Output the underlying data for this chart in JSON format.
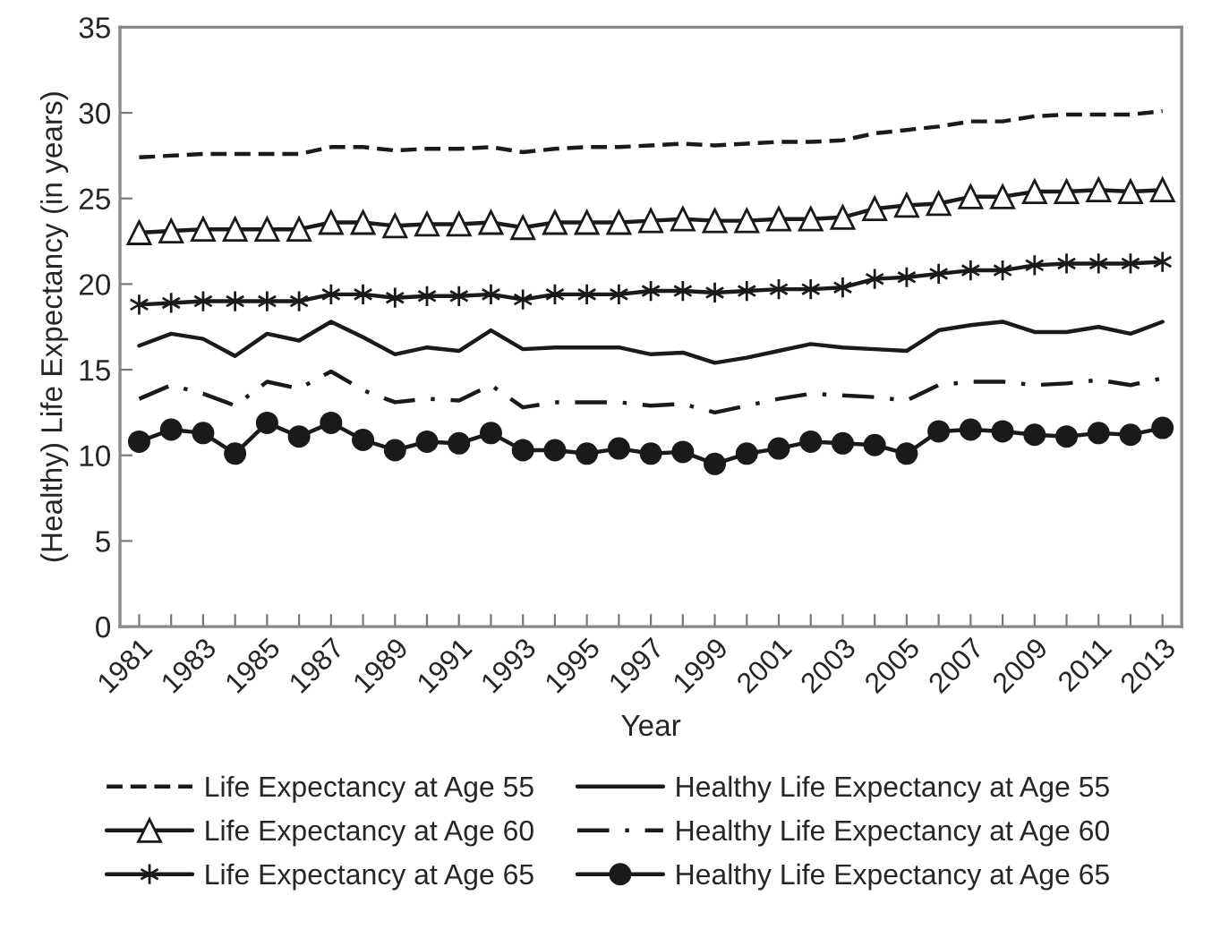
{
  "chart_data": {
    "type": "line",
    "xlabel": "Year",
    "ylabel": "(Healthy) Life Expectancy (in years)",
    "categories": [
      "1981",
      null,
      "1983",
      null,
      "1985",
      null,
      "1987",
      null,
      "1989",
      null,
      "1991",
      null,
      "1993",
      null,
      "1995",
      null,
      "1997",
      null,
      "1999",
      null,
      "2001",
      null,
      "2003",
      null,
      "2005",
      null,
      "2007",
      null,
      "2009",
      null,
      "2011",
      null,
      "2013"
    ],
    "ylim": [
      0,
      35
    ],
    "yticks": [
      0,
      5,
      10,
      15,
      20,
      25,
      30,
      35
    ],
    "grid": false,
    "legend": "bottom",
    "series": [
      {
        "name": "Life Expectancy at Age 55",
        "color": "#1a1a1a",
        "line_style": "dashed",
        "marker": "none",
        "values": [
          27.4,
          27.5,
          27.6,
          27.6,
          27.6,
          27.6,
          28.0,
          28.0,
          27.8,
          27.9,
          27.9,
          28.0,
          27.7,
          27.9,
          28.0,
          28.0,
          28.1,
          28.2,
          28.1,
          28.2,
          28.3,
          28.3,
          28.4,
          28.8,
          29.0,
          29.2,
          29.5,
          29.5,
          29.8,
          29.9,
          29.9,
          29.9,
          30.1
        ]
      },
      {
        "name": "Life Expectancy at Age 60",
        "color": "#1a1a1a",
        "line_style": "solid",
        "marker": "triangle",
        "values": [
          23.0,
          23.1,
          23.2,
          23.2,
          23.2,
          23.2,
          23.6,
          23.6,
          23.4,
          23.5,
          23.5,
          23.6,
          23.3,
          23.6,
          23.6,
          23.6,
          23.7,
          23.8,
          23.7,
          23.7,
          23.8,
          23.8,
          23.9,
          24.4,
          24.6,
          24.7,
          25.1,
          25.1,
          25.4,
          25.4,
          25.5,
          25.4,
          25.5
        ]
      },
      {
        "name": "Life Expectancy at Age 65",
        "color": "#1a1a1a",
        "line_style": "solid",
        "marker": "cross",
        "values": [
          18.8,
          18.9,
          19.0,
          19.0,
          19.0,
          19.0,
          19.4,
          19.4,
          19.2,
          19.3,
          19.3,
          19.4,
          19.1,
          19.4,
          19.4,
          19.4,
          19.6,
          19.6,
          19.5,
          19.6,
          19.7,
          19.7,
          19.8,
          20.3,
          20.4,
          20.6,
          20.8,
          20.8,
          21.1,
          21.2,
          21.2,
          21.2,
          21.3
        ]
      },
      {
        "name": "Healthy Life Expectancy at Age 55",
        "color": "#1a1a1a",
        "line_style": "solid",
        "marker": "none",
        "values": [
          16.4,
          17.1,
          16.8,
          15.8,
          17.1,
          16.7,
          17.8,
          16.9,
          15.9,
          16.3,
          16.1,
          17.3,
          16.2,
          16.3,
          16.3,
          16.3,
          15.9,
          16.0,
          15.4,
          15.7,
          16.1,
          16.5,
          16.3,
          16.2,
          16.1,
          17.3,
          17.6,
          17.8,
          17.2,
          17.2,
          17.5,
          17.1,
          17.8
        ]
      },
      {
        "name": "Healthy Life Expectancy at Age 60",
        "color": "#1a1a1a",
        "line_style": "dashdot",
        "marker": "none",
        "values": [
          13.3,
          14.1,
          13.6,
          12.9,
          14.3,
          13.9,
          14.9,
          13.8,
          13.1,
          13.3,
          13.2,
          14.1,
          12.8,
          13.1,
          13.1,
          13.1,
          12.9,
          13.0,
          12.5,
          12.9,
          13.3,
          13.6,
          13.5,
          13.4,
          13.2,
          14.1,
          14.3,
          14.3,
          14.1,
          14.2,
          14.4,
          14.1,
          14.5
        ]
      },
      {
        "name": "Healthy Life Expectancy at Age 65",
        "color": "#1a1a1a",
        "line_style": "solid",
        "marker": "circle",
        "values": [
          10.8,
          11.5,
          11.3,
          10.1,
          11.9,
          11.1,
          11.9,
          10.9,
          10.3,
          10.8,
          10.7,
          11.3,
          10.3,
          10.3,
          10.1,
          10.4,
          10.1,
          10.2,
          9.5,
          10.1,
          10.4,
          10.8,
          10.7,
          10.6,
          10.1,
          11.4,
          11.5,
          11.4,
          11.2,
          11.1,
          11.3,
          11.2,
          11.6
        ]
      }
    ]
  }
}
